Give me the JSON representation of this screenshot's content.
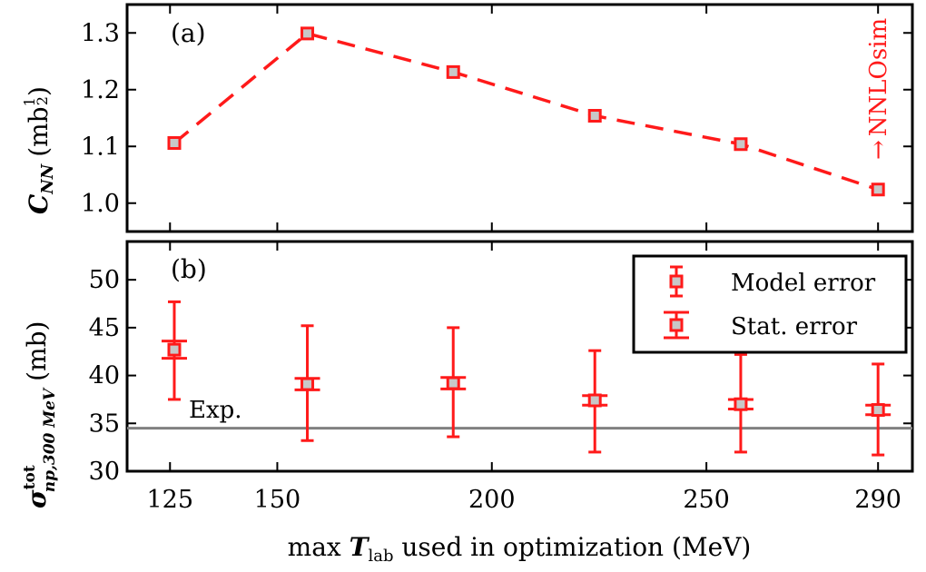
{
  "chart_data": [
    {
      "panel": "(a)",
      "type": "line",
      "x": [
        126,
        157,
        191,
        224,
        258,
        290
      ],
      "values": [
        1.106,
        1.299,
        1.231,
        1.154,
        1.104,
        1.024
      ],
      "line_style": "dashed",
      "ylabel_main": "C",
      "ylabel_sub": "NN",
      "ylabel_unit_prefix": "(mb",
      "ylabel_unit_num": "1",
      "ylabel_unit_den": "2",
      "ylabel_unit_suffix": ")",
      "ylim": [
        0.95,
        1.35
      ],
      "yticks": [
        1.0,
        1.1,
        1.2,
        1.3
      ],
      "ytick_labels": [
        "1.0",
        "1.1",
        "1.2",
        "1.3"
      ],
      "annotation": "NNLOsim",
      "annotation_arrow": "→"
    },
    {
      "panel": "(b)",
      "type": "scatter",
      "x": [
        126,
        157,
        191,
        224,
        258,
        290
      ],
      "values": [
        42.7,
        39.1,
        39.2,
        37.4,
        37.0,
        36.4
      ],
      "stat_error": [
        0.9,
        0.6,
        0.6,
        0.5,
        0.5,
        0.5
      ],
      "model_error_low": [
        37.5,
        33.2,
        33.6,
        32.0,
        32.0,
        31.7
      ],
      "model_error_high": [
        47.7,
        45.2,
        45.0,
        42.6,
        42.2,
        41.2
      ],
      "experiment_value": 34.5,
      "experiment_label": "Exp.",
      "ylabel_main": "σ",
      "ylabel_sup": "tot",
      "ylabel_sub": "np,300 MeV",
      "ylabel_unit": "(mb)",
      "ylim": [
        30,
        54
      ],
      "yticks": [
        30,
        35,
        40,
        45,
        50
      ],
      "ytick_labels": [
        "30",
        "35",
        "40",
        "45",
        "50"
      ],
      "legend": {
        "position": "top-right",
        "entries": [
          "Model error",
          "Stat. error"
        ]
      }
    }
  ],
  "xaxis": {
    "label_prefix": "max ",
    "label_var": "T",
    "label_sub": "lab",
    "label_suffix": " used in optimization (MeV)",
    "xlim": [
      115,
      298
    ],
    "ticks": [
      125,
      150,
      200,
      250,
      290
    ],
    "tick_labels": [
      "125",
      "150",
      "200",
      "250",
      "290"
    ]
  },
  "colors": {
    "series": "#ff1a1a",
    "marker_fill": "#c8c8c8",
    "experiment_line": "#808080",
    "frame": "#000000"
  }
}
